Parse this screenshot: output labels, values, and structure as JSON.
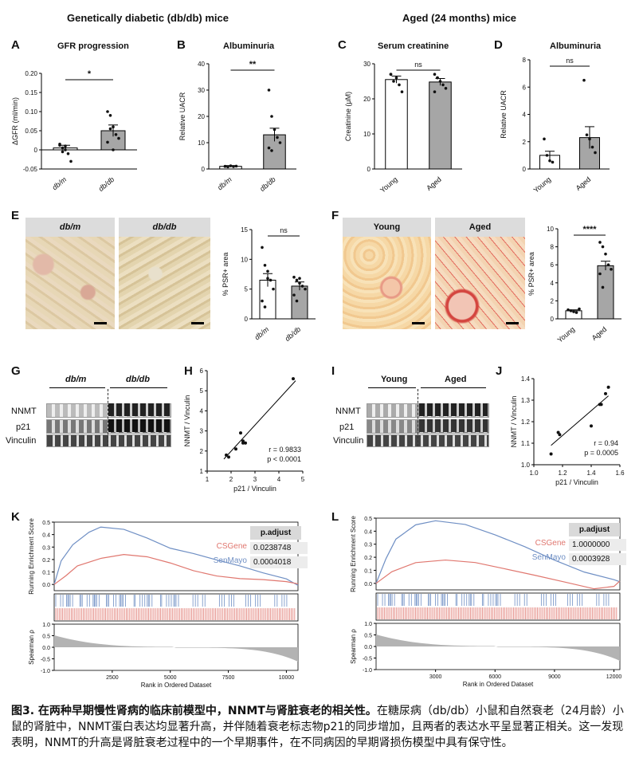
{
  "headers": {
    "left": "Genetically diabetic (db/db) mice",
    "right": "Aged (24 months) mice"
  },
  "panels": {
    "A": {
      "letter": "A",
      "title": "GFR progression",
      "ylabel": "ΔGFR (ml/min)",
      "sig": "*",
      "groups": [
        "db/m",
        "db/db"
      ]
    },
    "B": {
      "letter": "B",
      "title": "Albuminuria",
      "ylabel": "Relative UACR",
      "sig": "**",
      "groups": [
        "db/m",
        "db/db"
      ]
    },
    "C": {
      "letter": "C",
      "title": "Serum creatinine",
      "ylabel": "Creatinine (μM)",
      "sig": "ns",
      "groups": [
        "Young",
        "Aged"
      ]
    },
    "D": {
      "letter": "D",
      "title": "Albuminuria",
      "ylabel": "Relative UACR",
      "sig": "ns",
      "groups": [
        "Young",
        "Aged"
      ]
    },
    "E": {
      "letter": "E",
      "img_labels": [
        "db/m",
        "db/db"
      ],
      "ylabel": "% PSR+ area",
      "sig": "ns",
      "groups": [
        "db/m",
        "db/db"
      ]
    },
    "F": {
      "letter": "F",
      "img_labels": [
        "Young",
        "Aged"
      ],
      "ylabel": "% PSR+ area",
      "sig": "****",
      "groups": [
        "Young",
        "Aged"
      ]
    },
    "G": {
      "letter": "G",
      "groups": [
        "db/m",
        "db/db"
      ],
      "rows": [
        "NNMT",
        "p21",
        "Vinculin"
      ]
    },
    "H": {
      "letter": "H",
      "xlabel": "p21 / Vinculin",
      "ylabel": "NNMT / Vinculin",
      "r": "r = 0.9833",
      "p": "p < 0.0001"
    },
    "I": {
      "letter": "I",
      "groups": [
        "Young",
        "Aged"
      ],
      "rows": [
        "NNMT",
        "p21",
        "Vinculin"
      ]
    },
    "J": {
      "letter": "J",
      "xlabel": "p21 / Vinculin",
      "ylabel": "NNMT / Vinculin",
      "r": "r = 0.94",
      "p": "p = 0.0005"
    },
    "K": {
      "letter": "K",
      "ylabel_es": "Running Enrichment Score",
      "ylabel_sp": "Spearman ρ",
      "xlabel": "Rank in Ordered Dataset",
      "table_header": "p.adjust",
      "sets": [
        {
          "name": "CSGene",
          "value": "0.0238748"
        },
        {
          "name": "SenMayo",
          "value": "0.0004018"
        }
      ]
    },
    "L": {
      "letter": "L",
      "ylabel_es": "Running Enrichment Score",
      "ylabel_sp": "Spearman ρ",
      "xlabel": "Rank in Ordered Dataset",
      "table_header": "p.adjust",
      "sets": [
        {
          "name": "CSGene",
          "value": "1.0000000"
        },
        {
          "name": "SenMayo",
          "value": "0.0003928"
        }
      ]
    }
  },
  "colors": {
    "bar_open": "#ffffff",
    "bar_filled": "#a6a6a6",
    "csgene": "#e0776f",
    "senmayo": "#6f8fc4"
  },
  "chart_data": [
    {
      "id": "A",
      "type": "bar",
      "title": "GFR progression",
      "ylabel": "ΔGFR (ml/min)",
      "ylim": [
        -0.05,
        0.2
      ],
      "yticks": [
        -0.05,
        0.0,
        0.05,
        0.1,
        0.15,
        0.2
      ],
      "categories": [
        "db/m",
        "db/db"
      ],
      "values": [
        0.005,
        0.05
      ],
      "errors": [
        0.007,
        0.015
      ],
      "points": [
        [
          0.012,
          0.005,
          0.0,
          -0.01,
          -0.03,
          0.015,
          -0.005,
          0.01
        ],
        [
          0.1,
          0.09,
          0.06,
          0.04,
          0.03,
          0.02,
          0.055,
          0.0
        ]
      ]
    },
    {
      "id": "B",
      "type": "bar",
      "title": "Albuminuria",
      "ylabel": "Relative UACR",
      "ylim": [
        0,
        40
      ],
      "yticks": [
        0,
        10,
        20,
        30,
        40
      ],
      "categories": [
        "db/m",
        "db/db"
      ],
      "values": [
        1,
        13
      ],
      "errors": [
        0.3,
        2.5
      ],
      "points": [
        [
          1,
          0.8,
          1.2,
          0.9,
          1.1,
          1.0
        ],
        [
          30,
          20,
          15,
          12,
          10,
          8,
          7
        ]
      ]
    },
    {
      "id": "C",
      "type": "bar",
      "title": "Serum creatinine",
      "ylabel": "Creatinine (μM)",
      "ylim": [
        0,
        30
      ],
      "yticks": [
        0,
        10,
        20,
        30
      ],
      "categories": [
        "Young",
        "Aged"
      ],
      "values": [
        25.5,
        24.8
      ],
      "errors": [
        1.0,
        1.0
      ],
      "points": [
        [
          27,
          25,
          26,
          24,
          22,
          27
        ],
        [
          27,
          26,
          25,
          24,
          23,
          22,
          26
        ]
      ]
    },
    {
      "id": "D",
      "type": "bar",
      "title": "Albuminuria",
      "ylabel": "Relative UACR",
      "ylim": [
        0,
        8
      ],
      "yticks": [
        0,
        2,
        4,
        6,
        8
      ],
      "categories": [
        "Young",
        "Aged"
      ],
      "values": [
        1.0,
        2.3
      ],
      "errors": [
        0.3,
        0.8
      ],
      "points": [
        [
          2.2,
          1.0,
          0.6,
          0.5
        ],
        [
          6.5,
          2.5,
          2.2,
          1.6,
          1.2
        ]
      ]
    },
    {
      "id": "E",
      "type": "bar",
      "ylabel": "% PSR+ area",
      "ylim": [
        0,
        15
      ],
      "yticks": [
        0,
        5,
        10,
        15
      ],
      "categories": [
        "db/m",
        "db/db"
      ],
      "values": [
        6.5,
        5.5
      ],
      "errors": [
        1.1,
        0.7
      ],
      "points": [
        [
          12,
          9,
          8,
          6.5,
          5,
          3,
          2,
          6.8
        ],
        [
          7,
          6.5,
          6,
          5.5,
          5,
          4,
          3,
          6.8
        ]
      ]
    },
    {
      "id": "F",
      "type": "bar",
      "ylabel": "% PSR+ area",
      "ylim": [
        0,
        10
      ],
      "yticks": [
        0,
        2,
        4,
        6,
        8,
        10
      ],
      "categories": [
        "Young",
        "Aged"
      ],
      "values": [
        0.9,
        5.9
      ],
      "errors": [
        0.1,
        0.5
      ],
      "points": [
        [
          1.0,
          0.9,
          0.8,
          0.7,
          1.1
        ],
        [
          8.5,
          8.0,
          7.2,
          6.0,
          5.5,
          5.0,
          3.5
        ]
      ]
    },
    {
      "id": "H",
      "type": "scatter",
      "xlabel": "p21 / Vinculin",
      "ylabel": "NNMT / Vinculin",
      "xlim": [
        1,
        5
      ],
      "ylim": [
        1,
        6
      ],
      "xticks": [
        1,
        2,
        3,
        4,
        5
      ],
      "yticks": [
        1,
        2,
        3,
        4,
        5,
        6
      ],
      "x": [
        1.8,
        1.9,
        2.2,
        2.4,
        2.5,
        2.5,
        2.6,
        4.6
      ],
      "y": [
        1.8,
        1.7,
        2.1,
        2.9,
        2.5,
        2.4,
        2.4,
        5.6
      ],
      "fit": [
        [
          1.7,
          1.6
        ],
        [
          4.7,
          5.5
        ]
      ]
    },
    {
      "id": "J",
      "type": "scatter",
      "xlabel": "p21 / Vinculin",
      "ylabel": "NNMT / Vinculin",
      "xlim": [
        1.0,
        1.6
      ],
      "ylim": [
        1.0,
        1.4
      ],
      "xticks": [
        1.0,
        1.2,
        1.4,
        1.6
      ],
      "yticks": [
        1.0,
        1.1,
        1.2,
        1.3,
        1.4
      ],
      "x": [
        1.12,
        1.17,
        1.18,
        1.4,
        1.46,
        1.47,
        1.5,
        1.52
      ],
      "y": [
        1.05,
        1.15,
        1.14,
        1.18,
        1.28,
        1.28,
        1.33,
        1.36
      ],
      "fit": [
        [
          1.12,
          1.09
        ],
        [
          1.52,
          1.32
        ]
      ]
    },
    {
      "id": "K",
      "type": "line",
      "xlabel": "Rank in Ordered Dataset",
      "ylabel": "Running Enrichment Score",
      "xlim": [
        0,
        10500
      ],
      "xticks": [
        2500,
        5000,
        7500,
        10000
      ],
      "ylim": [
        -0.05,
        0.5
      ],
      "yticks": [
        0.0,
        0.1,
        0.2,
        0.3,
        0.4,
        0.5
      ],
      "series": [
        {
          "name": "SenMayo",
          "x": [
            0,
            300,
            800,
            1500,
            2000,
            3000,
            4000,
            5000,
            6000,
            7000,
            8000,
            9000,
            10000,
            10500
          ],
          "values": [
            0,
            0.2,
            0.33,
            0.42,
            0.45,
            0.43,
            0.37,
            0.3,
            0.26,
            0.2,
            0.14,
            0.08,
            0.04,
            0
          ]
        },
        {
          "name": "CSGene",
          "x": [
            0,
            500,
            1000,
            2000,
            3000,
            4000,
            5000,
            6000,
            7000,
            8000,
            9000,
            10000,
            10500
          ],
          "values": [
            0,
            0.08,
            0.16,
            0.21,
            0.23,
            0.21,
            0.17,
            0.12,
            0.08,
            0.05,
            0.03,
            0.01,
            0
          ]
        }
      ],
      "spearman": {
        "ylabel": "Spearman ρ",
        "ylim": [
          -1.0,
          1.0
        ],
        "yticks": [
          -1.0,
          -0.5,
          0.0,
          0.5,
          1.0
        ]
      }
    },
    {
      "id": "L",
      "type": "line",
      "xlabel": "Rank in Ordered Dataset",
      "ylabel": "Running Enrichment Score",
      "xlim": [
        0,
        12300
      ],
      "xticks": [
        3000,
        6000,
        9000,
        12000
      ],
      "ylim": [
        -0.05,
        0.5
      ],
      "yticks": [
        0.0,
        0.1,
        0.2,
        0.3,
        0.4,
        0.5
      ],
      "series": [
        {
          "name": "SenMayo",
          "x": [
            0,
            500,
            1000,
            2000,
            3000,
            4500,
            6000,
            7500,
            9000,
            10500,
            12000,
            12300
          ],
          "values": [
            0,
            0.2,
            0.35,
            0.45,
            0.47,
            0.44,
            0.37,
            0.29,
            0.19,
            0.09,
            0.02,
            0
          ]
        },
        {
          "name": "CSGene",
          "x": [
            0,
            800,
            2000,
            3500,
            5000,
            6500,
            8000,
            9500,
            11000,
            12000,
            12300
          ],
          "values": [
            0,
            0.1,
            0.17,
            0.18,
            0.15,
            0.1,
            0.06,
            0.02,
            -0.03,
            -0.02,
            0.01
          ]
        }
      ],
      "spearman": {
        "ylabel": "Spearman ρ",
        "ylim": [
          -1.0,
          1.0
        ],
        "yticks": [
          -1.0,
          -0.5,
          0.0,
          0.5,
          1.0
        ]
      }
    }
  ],
  "caption": {
    "bold": "图3. 在两种早期慢性肾病的临床前模型中，NNMT与肾脏衰老的相关性。",
    "body": "在糖尿病（db/db）小鼠和自然衰老（24月龄）小鼠的肾脏中，NNMT蛋白表达均显著升高，并伴随着衰老标志物p21的同步增加，且两者的表达水平呈显著正相关。这一发现表明，NNMT的升高是肾脏衰老过程中的一个早期事件，在不同病因的早期肾损伤模型中具有保守性。"
  }
}
